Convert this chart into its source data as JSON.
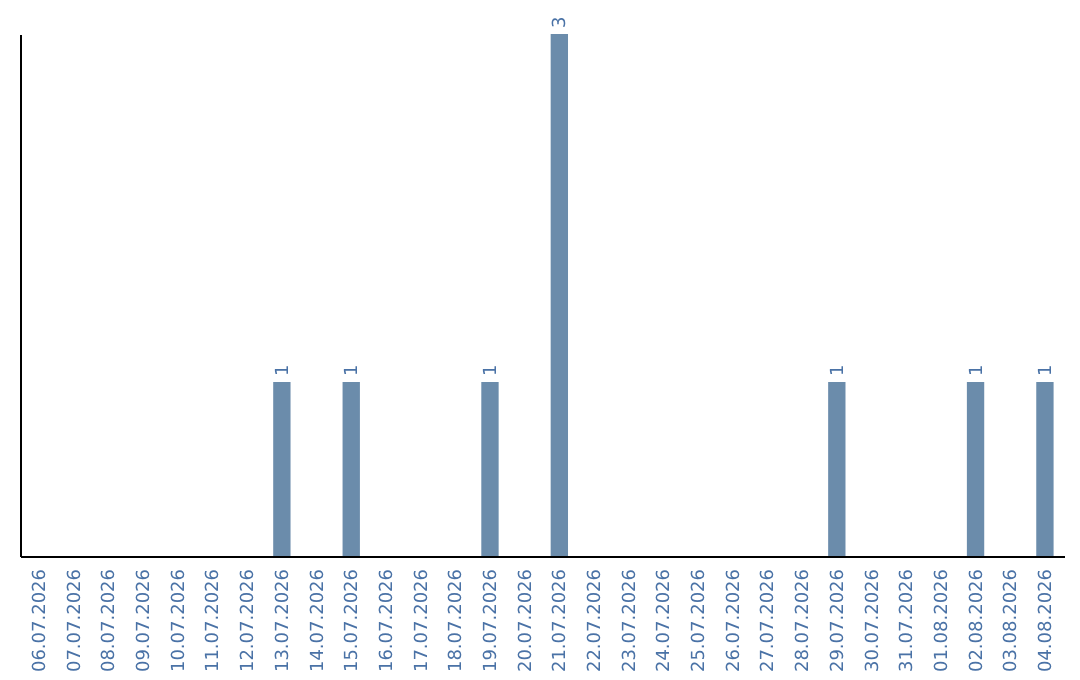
{
  "chart_data": {
    "type": "bar",
    "categories": [
      "06.07.2026",
      "07.07.2026",
      "08.07.2026",
      "09.07.2026",
      "10.07.2026",
      "11.07.2026",
      "12.07.2026",
      "13.07.2026",
      "14.07.2026",
      "15.07.2026",
      "16.07.2026",
      "17.07.2026",
      "18.07.2026",
      "19.07.2026",
      "20.07.2026",
      "21.07.2026",
      "22.07.2026",
      "23.07.2026",
      "24.07.2026",
      "25.07.2026",
      "26.07.2026",
      "27.07.2026",
      "28.07.2026",
      "29.07.2026",
      "30.07.2026",
      "31.07.2026",
      "01.08.2026",
      "02.08.2026",
      "03.08.2026",
      "04.08.2026"
    ],
    "values": [
      0,
      0,
      0,
      0,
      0,
      0,
      0,
      1,
      0,
      1,
      0,
      0,
      0,
      1,
      0,
      3,
      0,
      0,
      0,
      0,
      0,
      0,
      0,
      1,
      0,
      0,
      0,
      1,
      0,
      1
    ],
    "value_labels": [
      null,
      null,
      null,
      null,
      null,
      null,
      null,
      "1",
      null,
      "1",
      null,
      null,
      null,
      "1",
      null,
      "3",
      null,
      null,
      null,
      null,
      null,
      null,
      null,
      "1",
      null,
      null,
      null,
      "1",
      null,
      "1"
    ],
    "color": "#6b8cab",
    "ylim": [
      0,
      3
    ],
    "tick_labels": "x",
    "grid": false
  }
}
